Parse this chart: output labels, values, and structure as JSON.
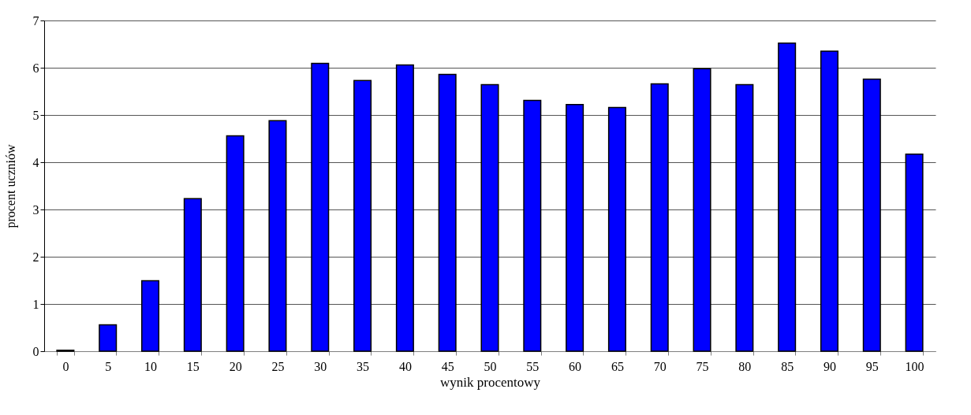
{
  "chart_data": {
    "type": "bar",
    "xlabel": "wynik procentowy",
    "ylabel": "procent uczniów",
    "categories": [
      "0",
      "5",
      "10",
      "15",
      "20",
      "25",
      "30",
      "35",
      "40",
      "45",
      "50",
      "55",
      "60",
      "65",
      "70",
      "75",
      "80",
      "85",
      "90",
      "95",
      "100"
    ],
    "values": [
      0.02,
      0.56,
      1.49,
      3.23,
      4.56,
      4.88,
      6.09,
      5.73,
      6.06,
      5.86,
      5.64,
      5.31,
      5.22,
      5.16,
      5.66,
      5.98,
      5.64,
      6.52,
      6.35,
      5.76,
      4.17
    ],
    "color": "#0000ff",
    "ylim": [
      0,
      7
    ],
    "yticks": [
      0,
      1,
      2,
      3,
      4,
      5,
      6,
      7
    ],
    "grid": "y"
  }
}
